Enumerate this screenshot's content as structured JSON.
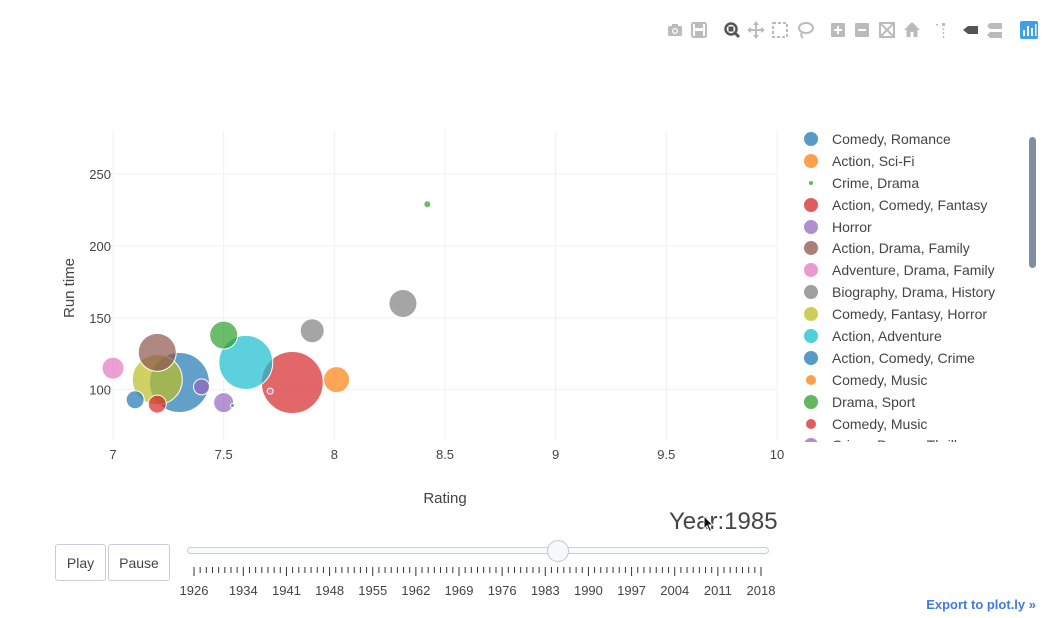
{
  "toolbar": {
    "buttons": [
      {
        "name": "camera-icon",
        "title": "Download plot as a png"
      },
      {
        "name": "save-icon",
        "title": "Save and edit plot in cloud"
      },
      {
        "name": "zoom-icon",
        "title": "Zoom",
        "active": true
      },
      {
        "name": "pan-icon",
        "title": "Pan"
      },
      {
        "name": "box-select-icon",
        "title": "Box Select"
      },
      {
        "name": "lasso-select-icon",
        "title": "Lasso Select"
      },
      {
        "name": "zoom-in-icon",
        "title": "Zoom in"
      },
      {
        "name": "zoom-out-icon",
        "title": "Zoom out"
      },
      {
        "name": "autoscale-icon",
        "title": "Autoscale"
      },
      {
        "name": "home-icon",
        "title": "Reset axes"
      },
      {
        "name": "spike-lines-icon",
        "title": "Toggle Spike Lines"
      },
      {
        "name": "hover-closest-icon",
        "title": "Show closest data on hover"
      },
      {
        "name": "hover-compare-icon",
        "title": "Compare data on hover"
      },
      {
        "name": "plotly-logo-icon",
        "title": "Produced with Plotly"
      }
    ]
  },
  "colors": {
    "blue": "#1f77b4",
    "orange": "#ff7f0e",
    "green": "#2ca02c",
    "red": "#d62728",
    "purple": "#9467bd",
    "brown": "#8c564b",
    "pink": "#e377c2",
    "gray": "#7f7f7f",
    "olive": "#bcbd22",
    "cyan": "#17becf",
    "accent": "#447adb"
  },
  "chart_data": {
    "type": "scatter",
    "mode": "bubble",
    "xlabel": "Rating",
    "ylabel": "Run time",
    "xlim": [
      7,
      10
    ],
    "ylim": [
      65,
      280
    ],
    "xticks": [
      "7",
      "7.5",
      "8",
      "8.5",
      "9",
      "9.5",
      "10"
    ],
    "yticks": [
      "100",
      "150",
      "200",
      "250"
    ],
    "grid": true,
    "legend_position": "right",
    "series": [
      {
        "name": "Comedy, Romance",
        "color": "#1f77b4",
        "points": [
          {
            "x": 7.1,
            "y": 93,
            "size": 18
          }
        ]
      },
      {
        "name": "Action, Sci-Fi",
        "color": "#ff7f0e",
        "points": [
          {
            "x": 8.01,
            "y": 107,
            "size": 26
          }
        ]
      },
      {
        "name": "Crime, Drama",
        "color": "#2ca02c",
        "points": [
          {
            "x": 8.42,
            "y": 229,
            "size": 7
          },
          {
            "x": 7.54,
            "y": 89,
            "size": 4
          }
        ]
      },
      {
        "name": "Action, Comedy, Fantasy",
        "color": "#d62728",
        "points": [
          {
            "x": 7.81,
            "y": 105,
            "size": 62
          }
        ]
      },
      {
        "name": "Horror",
        "color": "#9467bd",
        "points": [
          {
            "x": 7.5,
            "y": 91,
            "size": 20
          },
          {
            "x": 7.4,
            "y": 102,
            "size": 16
          }
        ]
      },
      {
        "name": "Action, Drama, Family",
        "color": "#8c564b",
        "points": [
          {
            "x": 7.2,
            "y": 126,
            "size": 38
          }
        ]
      },
      {
        "name": "Adventure, Drama, Family",
        "color": "#e377c2",
        "points": [
          {
            "x": 7.0,
            "y": 115,
            "size": 22
          },
          {
            "x": 7.71,
            "y": 99,
            "size": 6
          }
        ]
      },
      {
        "name": "Biography, Drama, History",
        "color": "#7f7f7f",
        "points": [
          {
            "x": 8.31,
            "y": 160,
            "size": 28
          },
          {
            "x": 7.9,
            "y": 141,
            "size": 24
          }
        ]
      },
      {
        "name": "Comedy, Fantasy, Horror",
        "color": "#bcbd22",
        "points": [
          {
            "x": 7.2,
            "y": 107,
            "size": 50
          }
        ]
      },
      {
        "name": "Action, Adventure",
        "color": "#17becf",
        "points": [
          {
            "x": 7.6,
            "y": 119,
            "size": 54
          }
        ]
      },
      {
        "name": "Action, Comedy, Crime",
        "color": "#1f77b4",
        "points": [
          {
            "x": 7.3,
            "y": 105,
            "size": 60
          }
        ]
      },
      {
        "name": "Comedy, Music",
        "color": "#ff7f0e",
        "points": []
      },
      {
        "name": "Drama, Sport",
        "color": "#2ca02c",
        "points": [
          {
            "x": 7.5,
            "y": 138,
            "size": 28
          }
        ]
      },
      {
        "name": "Comedy, Music",
        "color": "#d62728",
        "points": [
          {
            "x": 7.2,
            "y": 90,
            "size": 18
          }
        ]
      },
      {
        "name": "Crime, Drama, Thriller",
        "color": "#9467bd",
        "points": []
      }
    ]
  },
  "legend": {
    "items": [
      {
        "label": "Comedy, Romance",
        "color": "#1f77b4",
        "size": 14
      },
      {
        "label": "Action, Sci-Fi",
        "color": "#ff7f0e",
        "size": 14
      },
      {
        "label": "Crime, Drama",
        "color": "#2ca02c",
        "size": 4
      },
      {
        "label": "Action, Comedy, Fantasy",
        "color": "#d62728",
        "size": 14
      },
      {
        "label": "Horror",
        "color": "#9467bd",
        "size": 14
      },
      {
        "label": "Action, Drama, Family",
        "color": "#8c564b",
        "size": 14
      },
      {
        "label": "Adventure, Drama, Family",
        "color": "#e377c2",
        "size": 14
      },
      {
        "label": "Biography, Drama, History",
        "color": "#7f7f7f",
        "size": 14
      },
      {
        "label": "Comedy, Fantasy, Horror",
        "color": "#bcbd22",
        "size": 14
      },
      {
        "label": "Action, Adventure",
        "color": "#17becf",
        "size": 14
      },
      {
        "label": "Action, Comedy, Crime",
        "color": "#1f77b4",
        "size": 14
      },
      {
        "label": "Comedy, Music",
        "color": "#ff7f0e",
        "size": 10
      },
      {
        "label": "Drama, Sport",
        "color": "#2ca02c",
        "size": 14
      },
      {
        "label": "Comedy, Music",
        "color": "#d62728",
        "size": 10
      },
      {
        "label": "Crime, Drama, Thriller",
        "color": "#9467bd",
        "size": 14
      }
    ]
  },
  "animation": {
    "year_label": "Year:1985",
    "play_label": "Play",
    "pause_label": "Pause",
    "current_year": 1985,
    "year_min": 1926,
    "year_max": 2018,
    "tick_labels": [
      "1926",
      "1934",
      "1941",
      "1948",
      "1955",
      "1962",
      "1969",
      "1976",
      "1983",
      "1990",
      "1997",
      "2004",
      "2011",
      "2018"
    ]
  },
  "footer": {
    "export_label": "Export to plot.ly »"
  }
}
